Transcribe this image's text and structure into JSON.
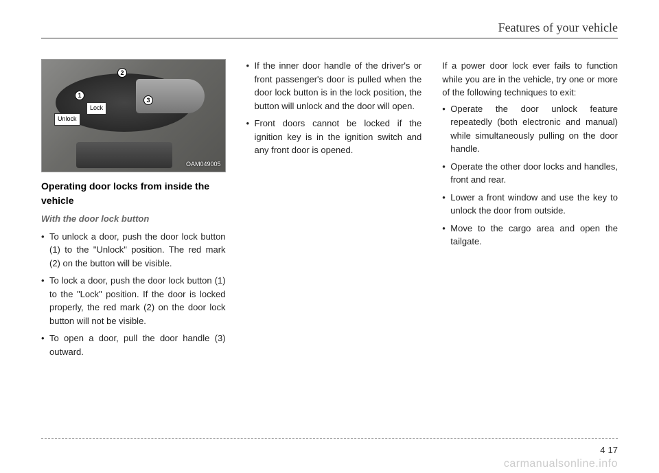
{
  "header": {
    "title": "Features of your vehicle"
  },
  "figure": {
    "image_code": "OAM049005",
    "callouts": {
      "unlock": "Unlock",
      "lock": "Lock"
    },
    "markers": {
      "m1": "1",
      "m2": "2",
      "m3": "3"
    }
  },
  "column1": {
    "section_title": "Operating door locks from inside the vehicle",
    "sub_title": "With the door lock button",
    "bullets": [
      "To unlock a door, push the door lock button (1) to the \"Unlock\" position. The red mark (2) on the button will be visible.",
      "To lock a door, push the door lock button (1) to the \"Lock\" position. If the door is locked properly, the red mark (2) on the door lock button will not be visible.",
      "To open a door, pull the door handle (3) outward."
    ]
  },
  "column2": {
    "bullets": [
      "If the inner door handle of the driver's or front passenger's door is pulled when the door lock button is in the lock position, the button will unlock and the  door will open.",
      "Front doors cannot be locked if the ignition key is in the ignition switch and any front door is opened."
    ]
  },
  "column3": {
    "intro": "If a power door lock ever fails to function while you are in the vehicle, try one or more of the following techniques to exit:",
    "bullets": [
      "Operate the door unlock feature repeatedly (both electronic and manual) while simultaneously pulling on the door handle.",
      "Operate the other door locks and handles, front and rear.",
      "Lower a front window and use the key to unlock the door from outside.",
      "Move to the cargo area and open the tailgate."
    ]
  },
  "footer": {
    "chapter": "4",
    "page": "17",
    "watermark": "carmanualsonline.info"
  }
}
